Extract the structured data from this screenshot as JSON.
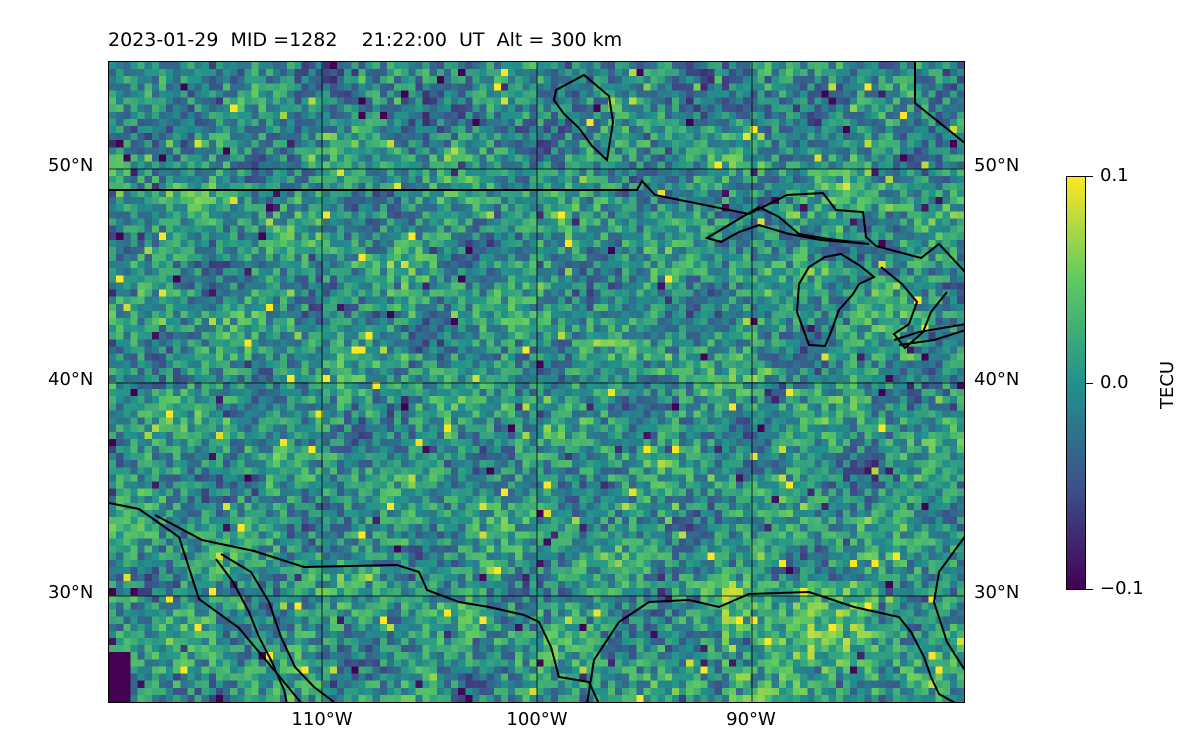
{
  "title": "2023-01-29  MID =1282    21:22:00  UT  Alt = 300 km",
  "map": {
    "lat_labels": [
      "50°N",
      "40°N",
      "30°N"
    ],
    "lon_labels": [
      "110°W",
      "100°W",
      "90°W"
    ],
    "gridlines": true,
    "color_map": "viridis"
  },
  "colorbar": {
    "label": "TECU",
    "tick_labels": [
      "0.1",
      "0.0",
      "−0.1"
    ],
    "ticks": [
      0.1,
      0.0,
      -0.1
    ],
    "range": [
      -0.1,
      0.1
    ],
    "colors": [
      "#440154",
      "#3b528b",
      "#21918c",
      "#5ec962",
      "#fde725"
    ]
  },
  "colors": {
    "border_lines": "#000000",
    "grid_lines": "#000000"
  }
}
